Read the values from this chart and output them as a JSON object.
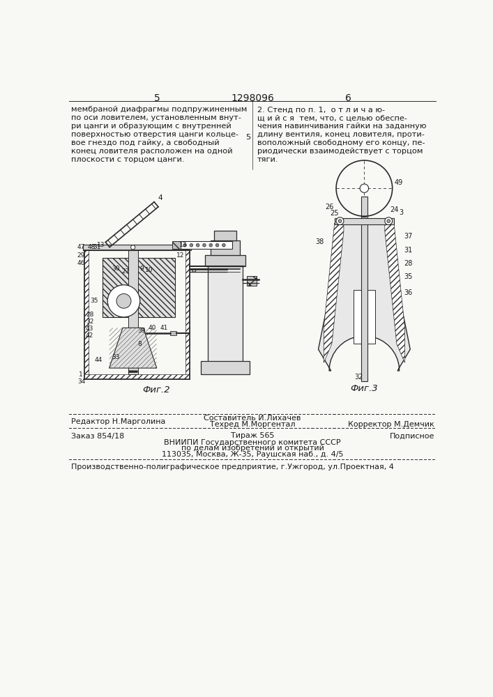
{
  "page_bg": "#f8f8f5",
  "header": {
    "page_left": "5",
    "patent_num": "1298096",
    "page_right": "6"
  },
  "left_column_text": [
    "мембраной диафрагмы подпружиненным",
    "по оси ловителем, установленным внут-",
    "ри цанги и образующим с внутренней",
    "поверхностью отверстия цанги кольце-",
    "вое гнездо под гайку, а свободный",
    "конец ловителя расположен на одной",
    "плоскости с торцом цанги."
  ],
  "right_column_text": [
    "2. Стенд по п. 1,  о т л и ч а ю-",
    "щ и й с я  тем, что, с целью обеспе-",
    "чения навинчивания гайки на заданную",
    "длину вентиля, конец ловителя, проти-",
    "воположный свободному его концу, пе-",
    "риодически взаимодействует с торцом",
    "тяги."
  ],
  "fig2_label": "Фиг.2",
  "fig3_label": "Фиг.3",
  "footer_line1_left": "Редактор Н.Марголина",
  "footer_line1_center_top": "Составитель И.Лихачев",
  "footer_line1_center": "Техред М.Моргентал",
  "footer_line1_right": "Корректор М.Демчик",
  "footer_line2_left": "Заказ 854/18",
  "footer_line2_center": "Тираж 565",
  "footer_line2_right": "Подписное",
  "footer_line3": "ВНИИПИ Государственного комитета СССР",
  "footer_line4": "по делам изобретений и открытий",
  "footer_line5": "113035, Москва, Ж-35, Раушская наб., д. 4/5",
  "footer_bottom": "Производственно-полиграфическое предприятие, г.Ужгород, ул.Проектная, 4",
  "text_color": "#1a1a1a",
  "line_color": "#2a2a2a"
}
